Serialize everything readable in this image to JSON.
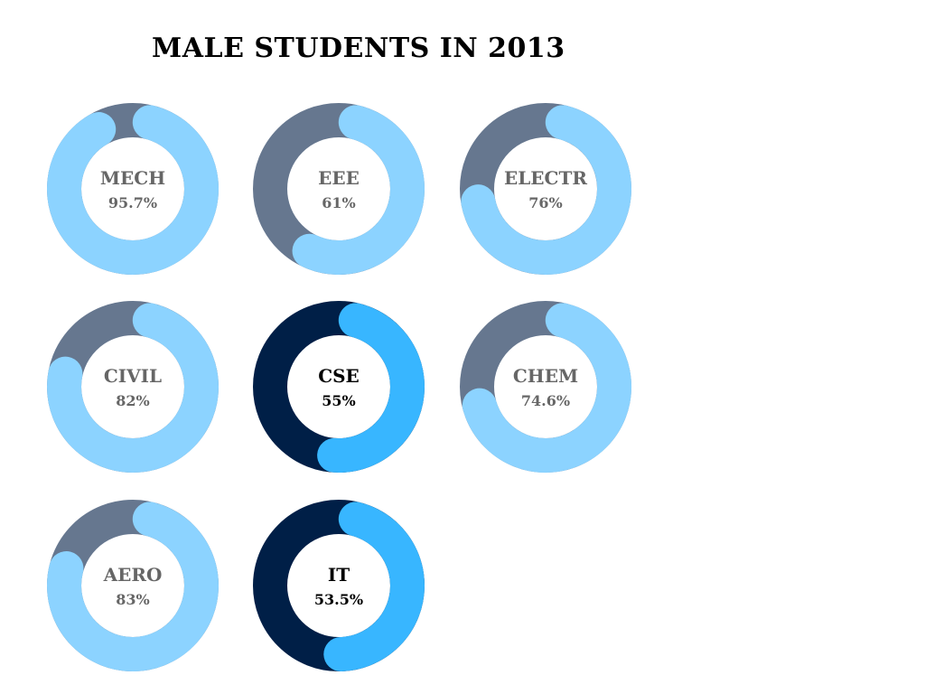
{
  "chart_data": {
    "type": "donut",
    "title": "MALE STUDENTS IN 2013",
    "items": [
      {
        "name": "MECH",
        "value": 95.7,
        "value_label": "95.7%",
        "highlighted": false
      },
      {
        "name": "EEE",
        "value": 61,
        "value_label": "61%",
        "highlighted": false
      },
      {
        "name": "ELECTR",
        "value": 76,
        "value_label": "76%",
        "highlighted": false
      },
      {
        "name": "CIVIL",
        "value": 82,
        "value_label": "82%",
        "highlighted": false
      },
      {
        "name": "CSE",
        "value": 55,
        "value_label": "55%",
        "highlighted": true
      },
      {
        "name": "CHEM",
        "value": 74.6,
        "value_label": "74.6%",
        "highlighted": false
      },
      {
        "name": "AERO",
        "value": 83,
        "value_label": "83%",
        "highlighted": false
      },
      {
        "name": "IT",
        "value": 53.5,
        "value_label": "53.5%",
        "highlighted": true
      }
    ],
    "colors": {
      "value_normal": "#8cd3ff",
      "remainder_normal": "#66778f",
      "label_normal": "#666666",
      "value_highlight": "#38b6ff",
      "remainder_highlight": "#001f47",
      "label_highlight": "#000000"
    }
  }
}
